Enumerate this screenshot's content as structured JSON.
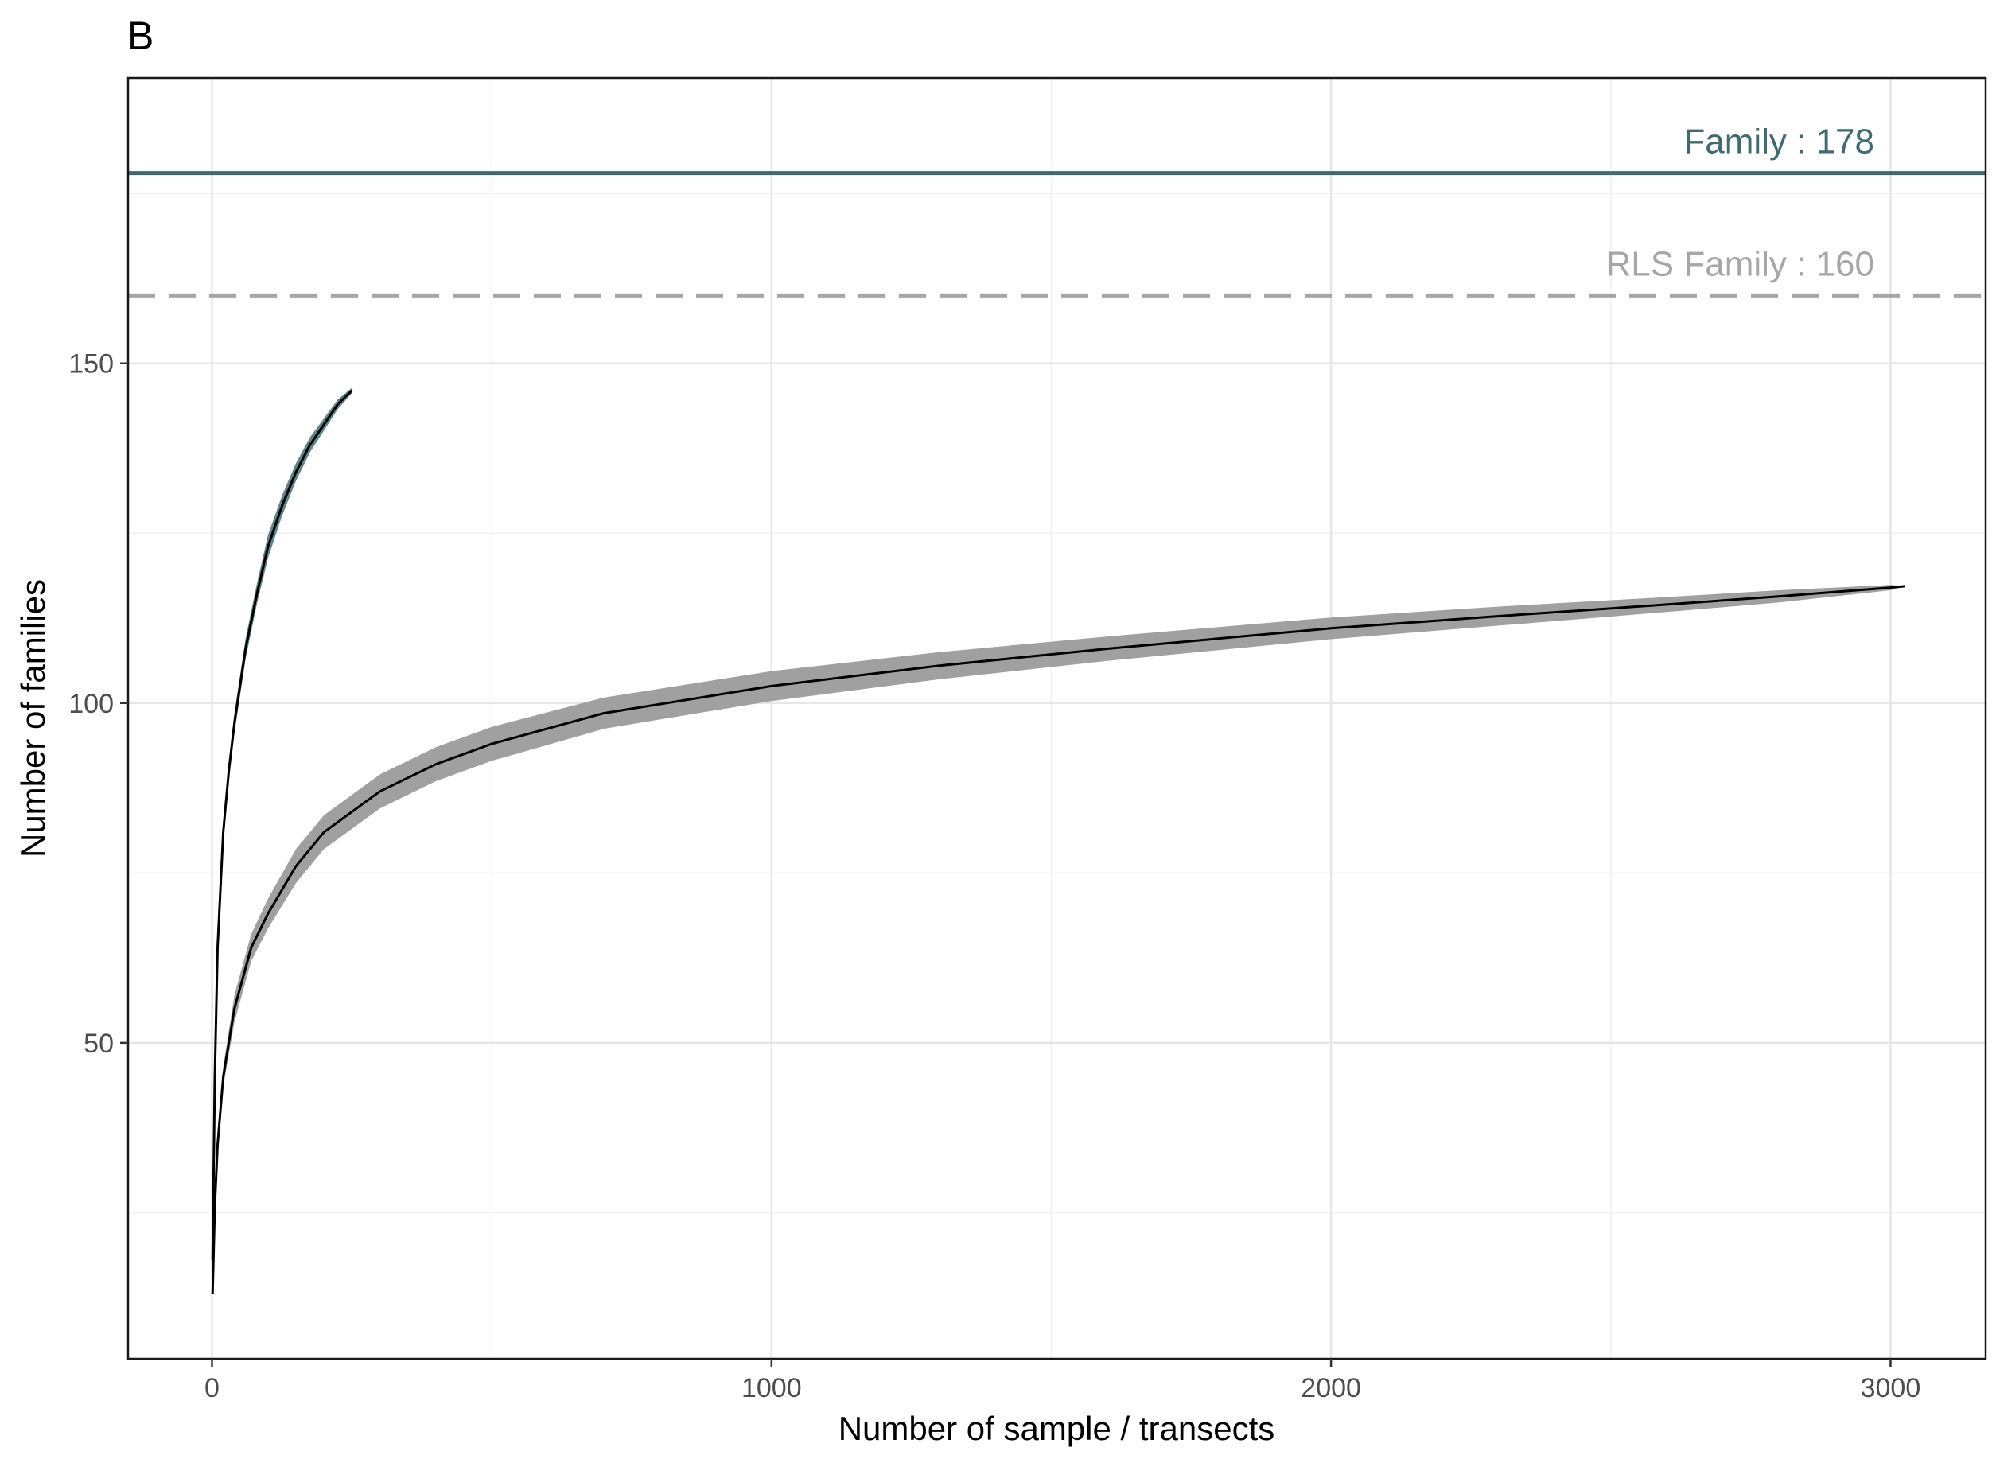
{
  "chart_data": {
    "type": "line",
    "panel_label": "B",
    "xlabel": "Number of sample / transects",
    "ylabel": "Number of families",
    "xlim": [
      -150,
      3170
    ],
    "ylim": [
      3.5,
      192
    ],
    "x_ticks": [
      0,
      1000,
      2000,
      3000
    ],
    "y_ticks": [
      50,
      100,
      150
    ],
    "grid": true,
    "reference_lines": [
      {
        "label": "Family : 178",
        "value": 178,
        "color": "#3d6b6f",
        "style": "solid"
      },
      {
        "label": "RLS Family : 160",
        "value": 160,
        "color": "#a6a6a6",
        "style": "dashed"
      }
    ],
    "series": [
      {
        "band_color": "#5c868a",
        "line_color": "#000000",
        "x": [
          1,
          5,
          10,
          20,
          30,
          40,
          60,
          80,
          100,
          125,
          150,
          175,
          200,
          225,
          250
        ],
        "y": [
          18,
          45,
          64,
          81,
          90,
          97,
          108,
          116,
          123,
          129,
          134,
          138,
          141,
          144,
          146
        ],
        "lower": [
          18,
          44,
          62.5,
          79.5,
          88.5,
          95.5,
          106.5,
          114.5,
          121.3,
          127.5,
          132.7,
          136.9,
          140.1,
          143.3,
          145.6
        ],
        "upper": [
          18,
          46,
          65.5,
          82.5,
          91.5,
          98.5,
          109.5,
          117.5,
          124.7,
          130.5,
          135.3,
          139.1,
          141.9,
          144.7,
          146.4
        ]
      },
      {
        "band_color": "#a0a0a0",
        "line_color": "#000000",
        "x": [
          1,
          5,
          10,
          20,
          40,
          70,
          100,
          150,
          200,
          300,
          400,
          500,
          700,
          1000,
          1300,
          1600,
          2000,
          2300,
          2600,
          2800,
          3000,
          3025
        ],
        "y": [
          13,
          26,
          35,
          45,
          55,
          64,
          69,
          76,
          81,
          87,
          91,
          94,
          98.5,
          102.5,
          105.5,
          108,
          111,
          112.8,
          114.5,
          115.7,
          117,
          117.2
        ],
        "lower": [
          13,
          25.5,
          34,
          43.5,
          53,
          62,
          66.8,
          73.5,
          78.5,
          84.5,
          88.5,
          91.5,
          96.2,
          100.3,
          103.5,
          106.2,
          109.4,
          111.4,
          113.4,
          114.8,
          116.6,
          117.2
        ],
        "upper": [
          13,
          26.5,
          36,
          46.5,
          57,
          66,
          71.2,
          78.5,
          83.5,
          89.5,
          93.5,
          96.5,
          100.8,
          104.7,
          107.5,
          109.8,
          112.6,
          114.2,
          115.6,
          116.6,
          117.4,
          117.2
        ]
      }
    ]
  }
}
